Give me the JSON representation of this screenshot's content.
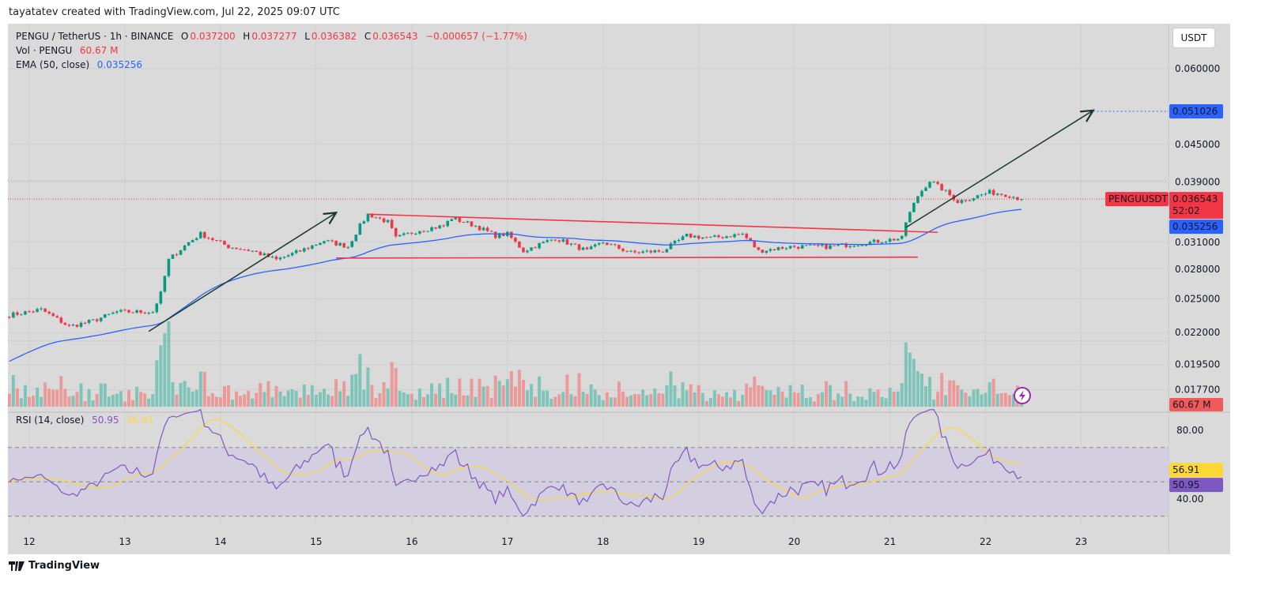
{
  "credit": "tayatatev created with TradingView.com, Jul 22, 2025 09:07 UTC",
  "legend": {
    "symbol": "PENGU / TetherUS · 1h · BINANCE",
    "o_label": "O",
    "o": "0.037200",
    "h_label": "H",
    "h": "0.037277",
    "l_label": "L",
    "l": "0.036382",
    "c_label": "C",
    "c": "0.036543",
    "change": "−0.000657 (−1.77%)",
    "vol_label": "Vol · PENGU",
    "vol": "60.67 M",
    "ema_label": "EMA (50, close)",
    "ema": "0.035256",
    "rsi_label": "RSI (14, close)",
    "rsi": "50.95",
    "rsi_ma": "56.91"
  },
  "currency_button": "USDT",
  "footer_logo": "TradingView",
  "colors": {
    "up": "#089981",
    "down": "#f23645",
    "ema": "#2962ff",
    "rsi": "#7e57c2",
    "rsi_ma": "#fdd835",
    "drawing_red": "#f23645",
    "arrow": "#1b3a2a"
  },
  "chart_data": {
    "type": "candlestick",
    "interval": "1h",
    "price_scale": "log",
    "y_ticks": [
      "0.060000",
      "0.045000",
      "0.039000",
      "0.031000",
      "0.028000",
      "0.025000",
      "0.022000",
      "0.019500",
      "0.017700"
    ],
    "x_ticks": [
      "12",
      "13",
      "14",
      "15",
      "16",
      "17",
      "18",
      "19",
      "20",
      "21",
      "22",
      "23"
    ],
    "close_path": [
      [
        "07-11 19:00",
        0.0235
      ],
      [
        "07-12 03:00",
        0.024
      ],
      [
        "07-12 10:00",
        0.0225
      ],
      [
        "07-12 16:00",
        0.023
      ],
      [
        "07-12 22:00",
        0.0238
      ],
      [
        "07-13 07:00",
        0.0238
      ],
      [
        "07-13 09:00",
        0.0255
      ],
      [
        "07-13 11:00",
        0.029
      ],
      [
        "07-13 16:00",
        0.031
      ],
      [
        "07-13 19:00",
        0.032
      ],
      [
        "07-14 02:00",
        0.0305
      ],
      [
        "07-14 08:00",
        0.03
      ],
      [
        "07-14 14:00",
        0.029
      ],
      [
        "07-14 20:00",
        0.03
      ],
      [
        "07-15 02:00",
        0.0312
      ],
      [
        "07-15 08:00",
        0.0305
      ],
      [
        "07-15 11:00",
        0.033
      ],
      [
        "07-15 13:00",
        0.0345
      ],
      [
        "07-15 18:00",
        0.0335
      ],
      [
        "07-15 20:00",
        0.0315
      ],
      [
        "07-16 02:00",
        0.0325
      ],
      [
        "07-16 08:00",
        0.033
      ],
      [
        "07-16 10:00",
        0.034
      ],
      [
        "07-16 16:00",
        0.033
      ],
      [
        "07-16 21:00",
        0.0318
      ],
      [
        "07-17 00:00",
        0.032
      ],
      [
        "07-17 04:00",
        0.03
      ],
      [
        "07-17 12:00",
        0.0315
      ],
      [
        "07-17 20:00",
        0.03
      ],
      [
        "07-18 00:00",
        0.031
      ],
      [
        "07-18 07:00",
        0.0298
      ],
      [
        "07-18 15:00",
        0.03
      ],
      [
        "07-18 21:00",
        0.0318
      ],
      [
        "07-19 03:00",
        0.0315
      ],
      [
        "07-19 11:00",
        0.032
      ],
      [
        "07-19 15:00",
        0.03
      ],
      [
        "07-19 23:00",
        0.0305
      ],
      [
        "07-20 09:00",
        0.0305
      ],
      [
        "07-20 19:00",
        0.031
      ],
      [
        "07-21 03:00",
        0.0315
      ],
      [
        "07-21 04:00",
        0.0335
      ],
      [
        "07-21 07:00",
        0.037
      ],
      [
        "07-21 10:00",
        0.0392
      ],
      [
        "07-21 13:00",
        0.038
      ],
      [
        "07-21 17:00",
        0.0362
      ],
      [
        "07-21 21:00",
        0.0368
      ],
      [
        "07-22 01:00",
        0.0375
      ],
      [
        "07-22 05:00",
        0.0372
      ],
      [
        "07-22 09:00",
        0.036543
      ]
    ],
    "last_price_label": {
      "symbol": "PENGUUSDT",
      "price": "0.036543",
      "countdown": "52:02"
    },
    "ema_value_label": "0.035256",
    "target_label": "0.051026",
    "volume_label": "60.67 M",
    "rsi_ticks": [
      "80.00",
      "40.00"
    ],
    "rsi_bands": [
      70,
      50,
      30
    ],
    "rsi_value_labels": {
      "rsi": "50.95",
      "rsi_ma": "56.91"
    },
    "drawings": {
      "arrow_1": [
        [
          "07-13 06:00",
          0.0221
        ],
        [
          "07-15 05:00",
          0.0347
        ]
      ],
      "resistance_line": [
        [
          "07-15 13:00",
          0.0345
        ],
        [
          "07-21 12:00",
          0.0322
        ]
      ],
      "support_line": [
        [
          "07-15 05:00",
          0.0292
        ],
        [
          "07-21 07:00",
          0.0293
        ]
      ],
      "arrow_2": [
        [
          "07-21 04:00",
          0.0328
        ],
        [
          "07-23 03:00",
          0.0512
        ]
      ],
      "target_line_price": 0.051026,
      "high_marker_price": 0.0392,
      "low_marker_price": 0.0213
    }
  }
}
